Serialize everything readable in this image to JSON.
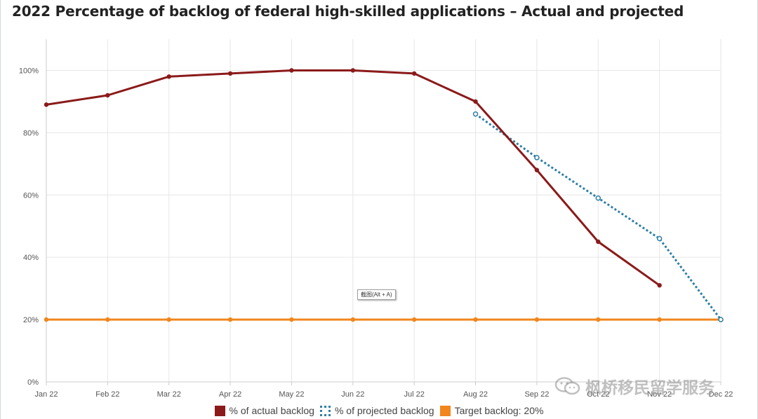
{
  "title": "2022 Percentage of backlog of federal high-skilled applications – Actual and projected",
  "chart_data": {
    "type": "line",
    "categories": [
      "Jan 22",
      "Feb 22",
      "Mar 22",
      "Apr 22",
      "May 22",
      "Jun 22",
      "Jul 22",
      "Aug 22",
      "Sep 22",
      "Oct 22",
      "Nov 22",
      "Dec 22"
    ],
    "series": [
      {
        "name": "% of actual backlog",
        "color": "#8b1a1a",
        "style": "solid",
        "values": [
          89,
          92,
          98,
          99,
          100,
          100,
          99,
          90,
          68,
          45,
          31,
          null
        ]
      },
      {
        "name": "% of projected backlog",
        "color": "#2e7fa6",
        "style": "dotted",
        "values": [
          null,
          null,
          null,
          null,
          null,
          null,
          null,
          86,
          72,
          59,
          46,
          20
        ]
      },
      {
        "name": "Target backlog: 20%",
        "color": "#f0861c",
        "style": "solid",
        "values": [
          20,
          20,
          20,
          20,
          20,
          20,
          20,
          20,
          20,
          20,
          20,
          20
        ]
      }
    ],
    "y_ticks": [
      0,
      20,
      40,
      60,
      80,
      100
    ],
    "y_tick_labels": [
      "0%",
      "20%",
      "40%",
      "60%",
      "80%",
      "100%"
    ],
    "ylim": [
      0,
      110
    ],
    "xlabel": "",
    "ylabel": "",
    "grid": true,
    "legend_position": "bottom-center"
  },
  "tooltip": "截图(Alt + A)",
  "watermark": "枫桥移民留学服务"
}
